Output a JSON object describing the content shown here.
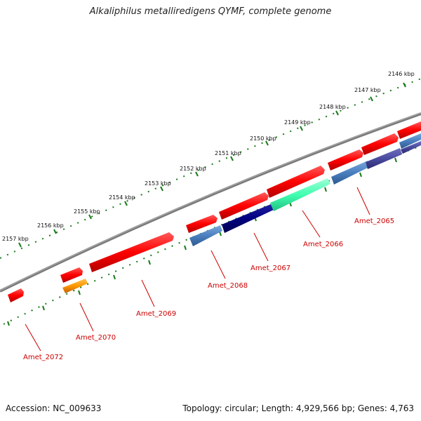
{
  "title": "Alkaliphilus metalliredigens QYMF, complete genome",
  "footer": {
    "accession": "Accession: NC_009633",
    "summary": "Topology: circular; Length: 4,929,566 bp; Genes: 4,763"
  },
  "ticks": [
    "2146 kbp",
    "2147 kbp",
    "2148 kbp",
    "2149 kbp",
    "2150 kbp",
    "2151 kbp",
    "2152 kbp",
    "2153 kbp",
    "2154 kbp",
    "2155 kbp",
    "2156 kbp",
    "2157 kbp"
  ],
  "genes": [
    "Amet_2065",
    "Amet_2066",
    "Amet_2067",
    "Amet_2068",
    "Amet_2069",
    "Amet_2070",
    "Amet_2072"
  ],
  "colors": {
    "backbone": "#7a7a7a",
    "ticks": "#1a7a1a",
    "cds_forward": "#ff0000",
    "label": "#cc0000",
    "steelblue": "#4a7fbf",
    "navy": "#000080",
    "aquamarine": "#40ffb0",
    "orange": "#ff9900",
    "slate": "#4a4aa0"
  }
}
